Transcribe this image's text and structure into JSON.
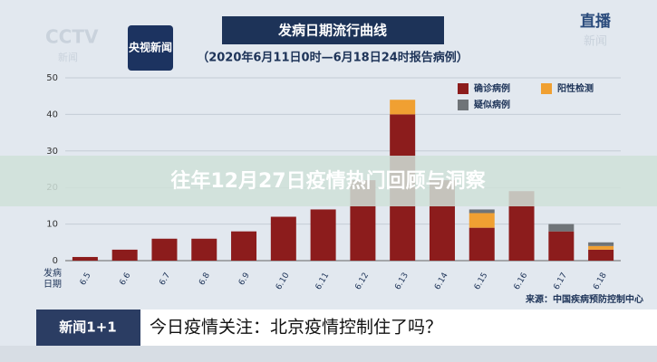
{
  "chart_data": {
    "type": "stacked-bar",
    "title": "发病日期流行曲线",
    "subtitle": "（2020年6月11日0时—6月18日24时报告病例）",
    "x_label": "发病日期",
    "source": "来源：中国疾病预防控制中心",
    "categories": [
      "6.5",
      "6.6",
      "6.7",
      "6.8",
      "6.9",
      "6.10",
      "6.11",
      "6.12",
      "6.13",
      "6.14",
      "6.15",
      "6.16",
      "6.17",
      "6.18"
    ],
    "series": [
      {
        "name": "确诊病例",
        "color": "#8c1c1c",
        "values": [
          1,
          3,
          6,
          6,
          8,
          12,
          14,
          22,
          40,
          22,
          9,
          19,
          8,
          3
        ]
      },
      {
        "name": "阳性检测",
        "color": "#f0a032",
        "values": [
          0,
          0,
          0,
          0,
          0,
          0,
          0,
          0,
          4,
          0,
          4,
          0,
          0,
          1
        ]
      },
      {
        "name": "疑似病例",
        "color": "#6f7478",
        "values": [
          0,
          0,
          0,
          0,
          0,
          0,
          0,
          0,
          0,
          0,
          1,
          0,
          2,
          1
        ]
      }
    ],
    "ylim": [
      0,
      50
    ],
    "yticks": [
      0,
      10,
      20,
      30,
      40,
      50
    ],
    "grid": true
  },
  "logos": {
    "left_brand": "CCTV",
    "left_sub": "新闻",
    "news_app": "央视新闻",
    "live": "直播",
    "live_sub": "新闻"
  },
  "banner": "往年12月27日疫情热门回顾与洞察",
  "ticker": {
    "program": "新闻1+1",
    "headline": "今日疫情关注：北京疫情控制住了吗？"
  }
}
